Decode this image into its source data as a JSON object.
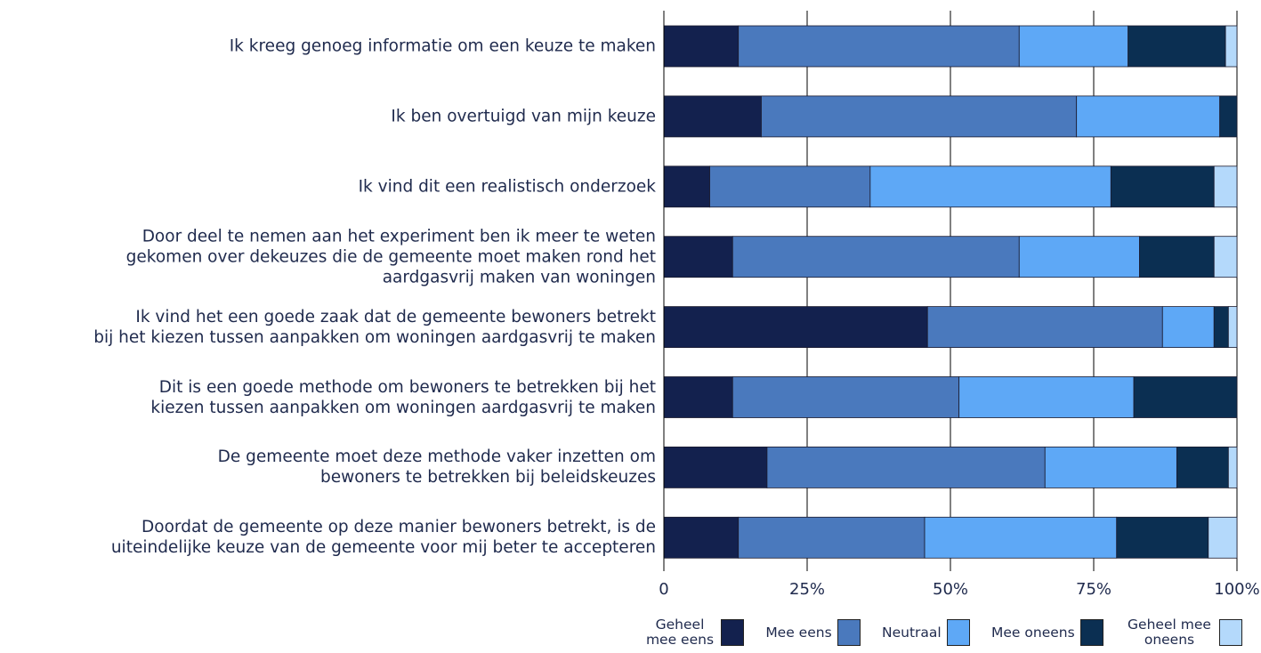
{
  "chart_data": {
    "type": "stacked-bar-horizontal",
    "categories": [
      "Ik kreeg genoeg informatie om een keuze te maken",
      "Ik ben overtuigd van mijn keuze",
      "Ik vind dit een realistisch onderzoek",
      "Door deel te nemen aan het experiment ben ik meer te weten\ngekomen over dekeuzes die de gemeente moet maken rond het\naardgasvrij maken van woningen",
      "Ik vind het een goede zaak dat de gemeente bewoners betrekt\nbij het kiezen tussen aanpakken om woningen aardgasvrij te maken",
      "Dit is een goede methode om bewoners te betrekken bij het\nkiezen tussen aanpakken om woningen aardgasvrij te maken",
      "De gemeente moet deze methode vaker inzetten om\nbewoners te betrekken bij beleidskeuzes",
      "Doordat de gemeente op deze manier bewoners betrekt, is de\nuiteindelijke keuze van de gemeente voor mij beter te accepteren"
    ],
    "series": [
      {
        "name": "Geheel mee eens",
        "color": "#13214e",
        "values": [
          13,
          17,
          8,
          12,
          46,
          12,
          18,
          13
        ]
      },
      {
        "name": "Mee eens",
        "color": "#4a79bd",
        "values": [
          49,
          55,
          28,
          50,
          41,
          39.5,
          48.5,
          32.5
        ]
      },
      {
        "name": "Neutraal",
        "color": "#5ea8f6",
        "values": [
          19,
          25,
          42,
          21,
          9,
          30.5,
          23,
          33.5
        ]
      },
      {
        "name": "Mee oneens",
        "color": "#0b2f52",
        "values": [
          17,
          3,
          18,
          13,
          2.5,
          18,
          9,
          16
        ]
      },
      {
        "name": "Geheel mee oneens",
        "color": "#b4d9fb",
        "values": [
          2,
          0,
          4,
          4,
          1.5,
          0,
          1.5,
          5
        ]
      }
    ],
    "xlim": [
      0,
      100
    ],
    "xticks": [
      0,
      {
        "value": 25,
        "label": "25%"
      },
      {
        "value": 50,
        "label": "50%"
      },
      {
        "value": 75,
        "label": "75%"
      },
      {
        "value": 100,
        "label": "100%"
      }
    ],
    "grid": true
  }
}
